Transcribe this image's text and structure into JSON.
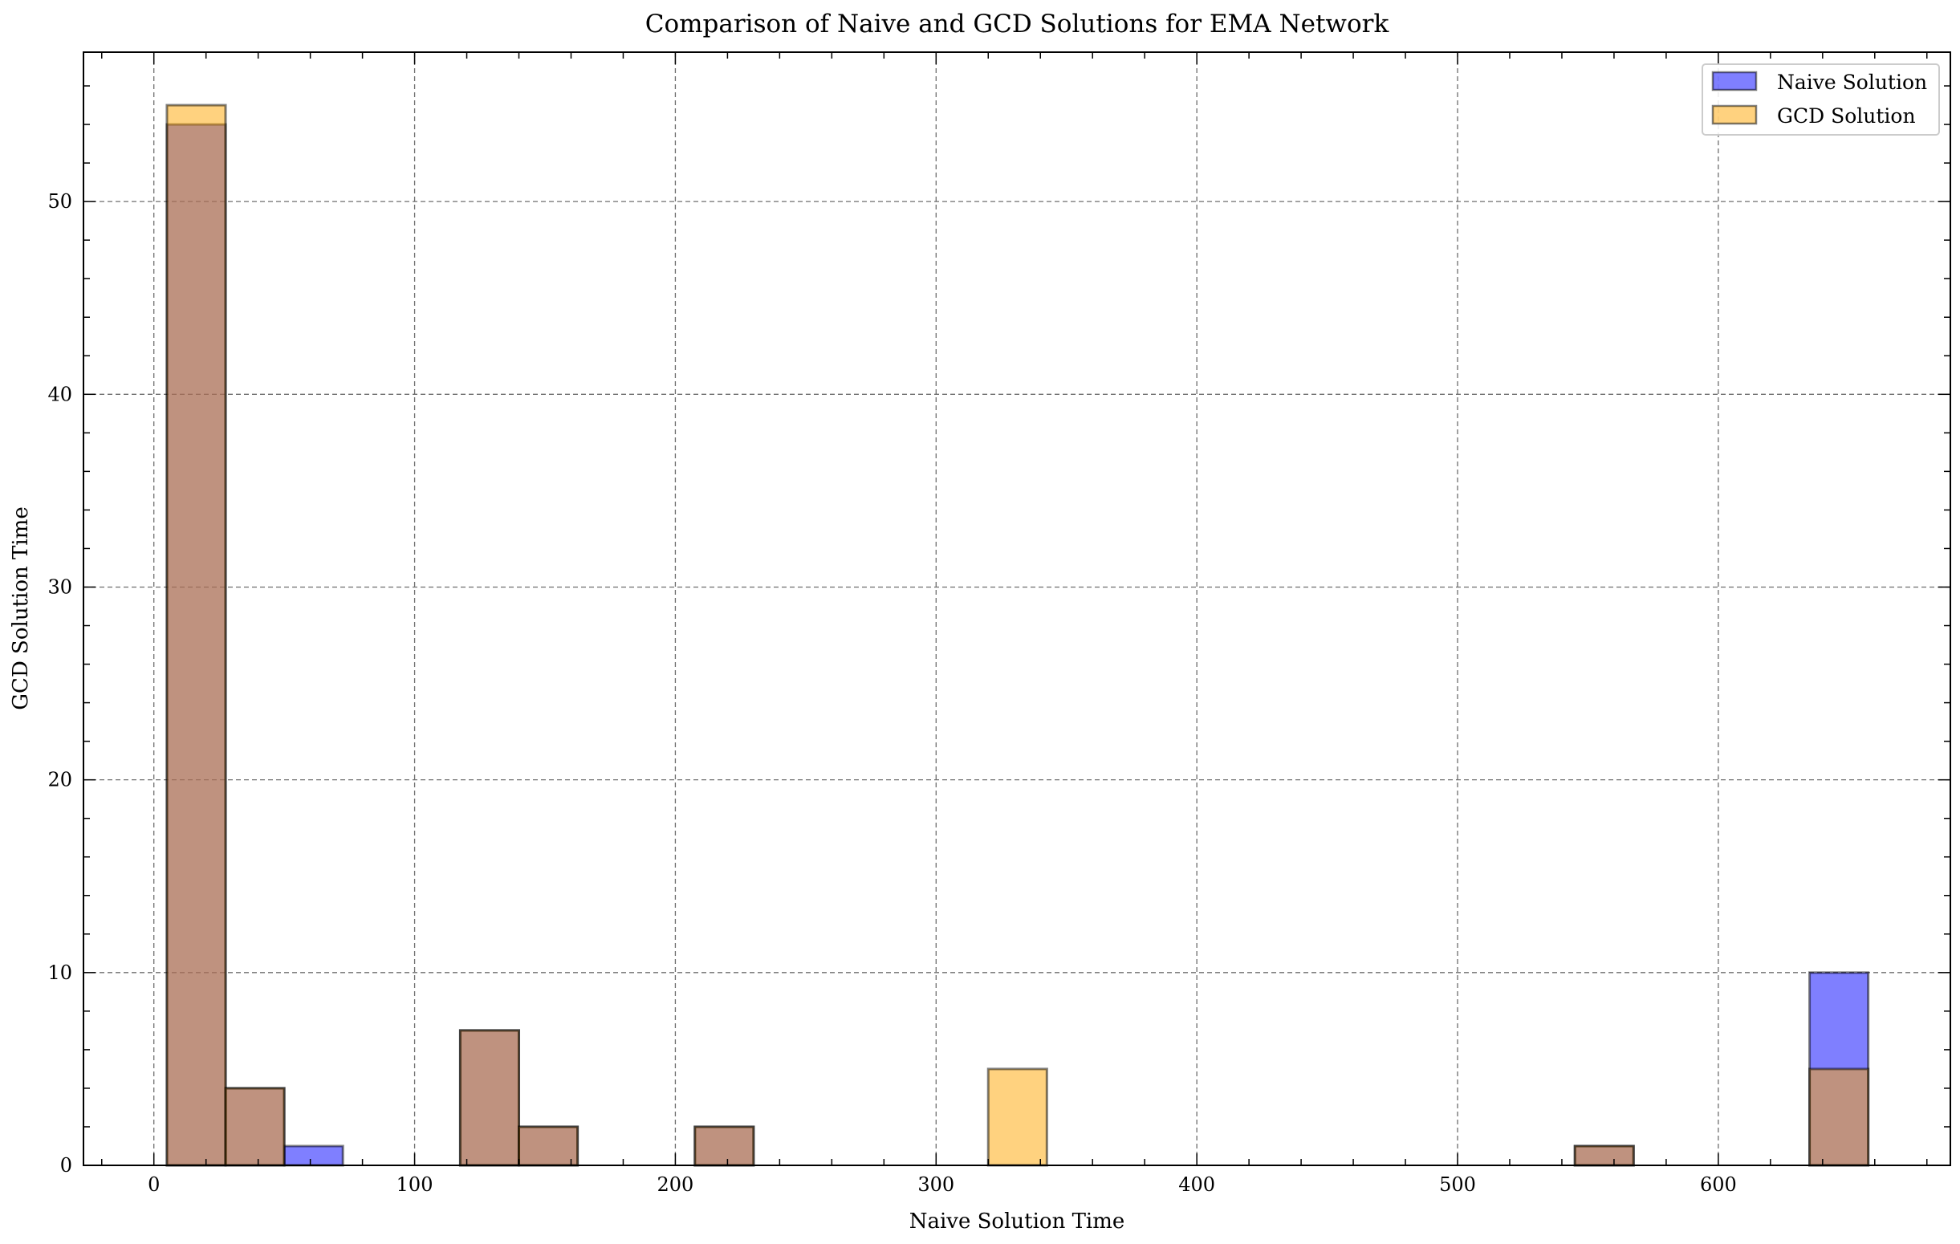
{
  "chart_data": {
    "type": "bar",
    "title": "Comparison of Naive and GCD Solutions for EMA Network",
    "xlabel": "Naive Solution Time",
    "ylabel": "GCD Solution Time",
    "xlim": [
      -27,
      689
    ],
    "ylim": [
      0,
      57.75
    ],
    "xticks": [
      0,
      100,
      200,
      300,
      400,
      500,
      600
    ],
    "yticks": [
      0,
      10,
      20,
      30,
      40,
      50
    ],
    "x_minor_step": 20,
    "y_minor_step": 2,
    "grid": true,
    "legend_position": "top-right",
    "bin_edges": [
      5,
      27.5,
      50,
      72.5,
      95,
      117.5,
      140,
      162.5,
      185,
      207.5,
      230,
      252.5,
      275,
      297.5,
      320,
      342.5,
      365,
      387.5,
      410,
      432.5,
      455,
      477.5,
      500,
      522.5,
      545,
      567.5,
      590,
      612.5,
      635,
      657.5
    ],
    "series": [
      {
        "name": "Naive Solution",
        "color": "#0000ff",
        "values": [
          54,
          4,
          1,
          0,
          0,
          7,
          2,
          0,
          0,
          2,
          0,
          0,
          0,
          0,
          0,
          0,
          0,
          0,
          0,
          0,
          0,
          0,
          0,
          0,
          1,
          0,
          0,
          0,
          10
        ]
      },
      {
        "name": "GCD Solution",
        "color": "#ffa500",
        "values": [
          55,
          4,
          0,
          0,
          0,
          7,
          2,
          0,
          0,
          2,
          0,
          0,
          0,
          0,
          5,
          0,
          0,
          0,
          0,
          0,
          0,
          0,
          0,
          0,
          1,
          0,
          0,
          0,
          5
        ]
      }
    ]
  }
}
